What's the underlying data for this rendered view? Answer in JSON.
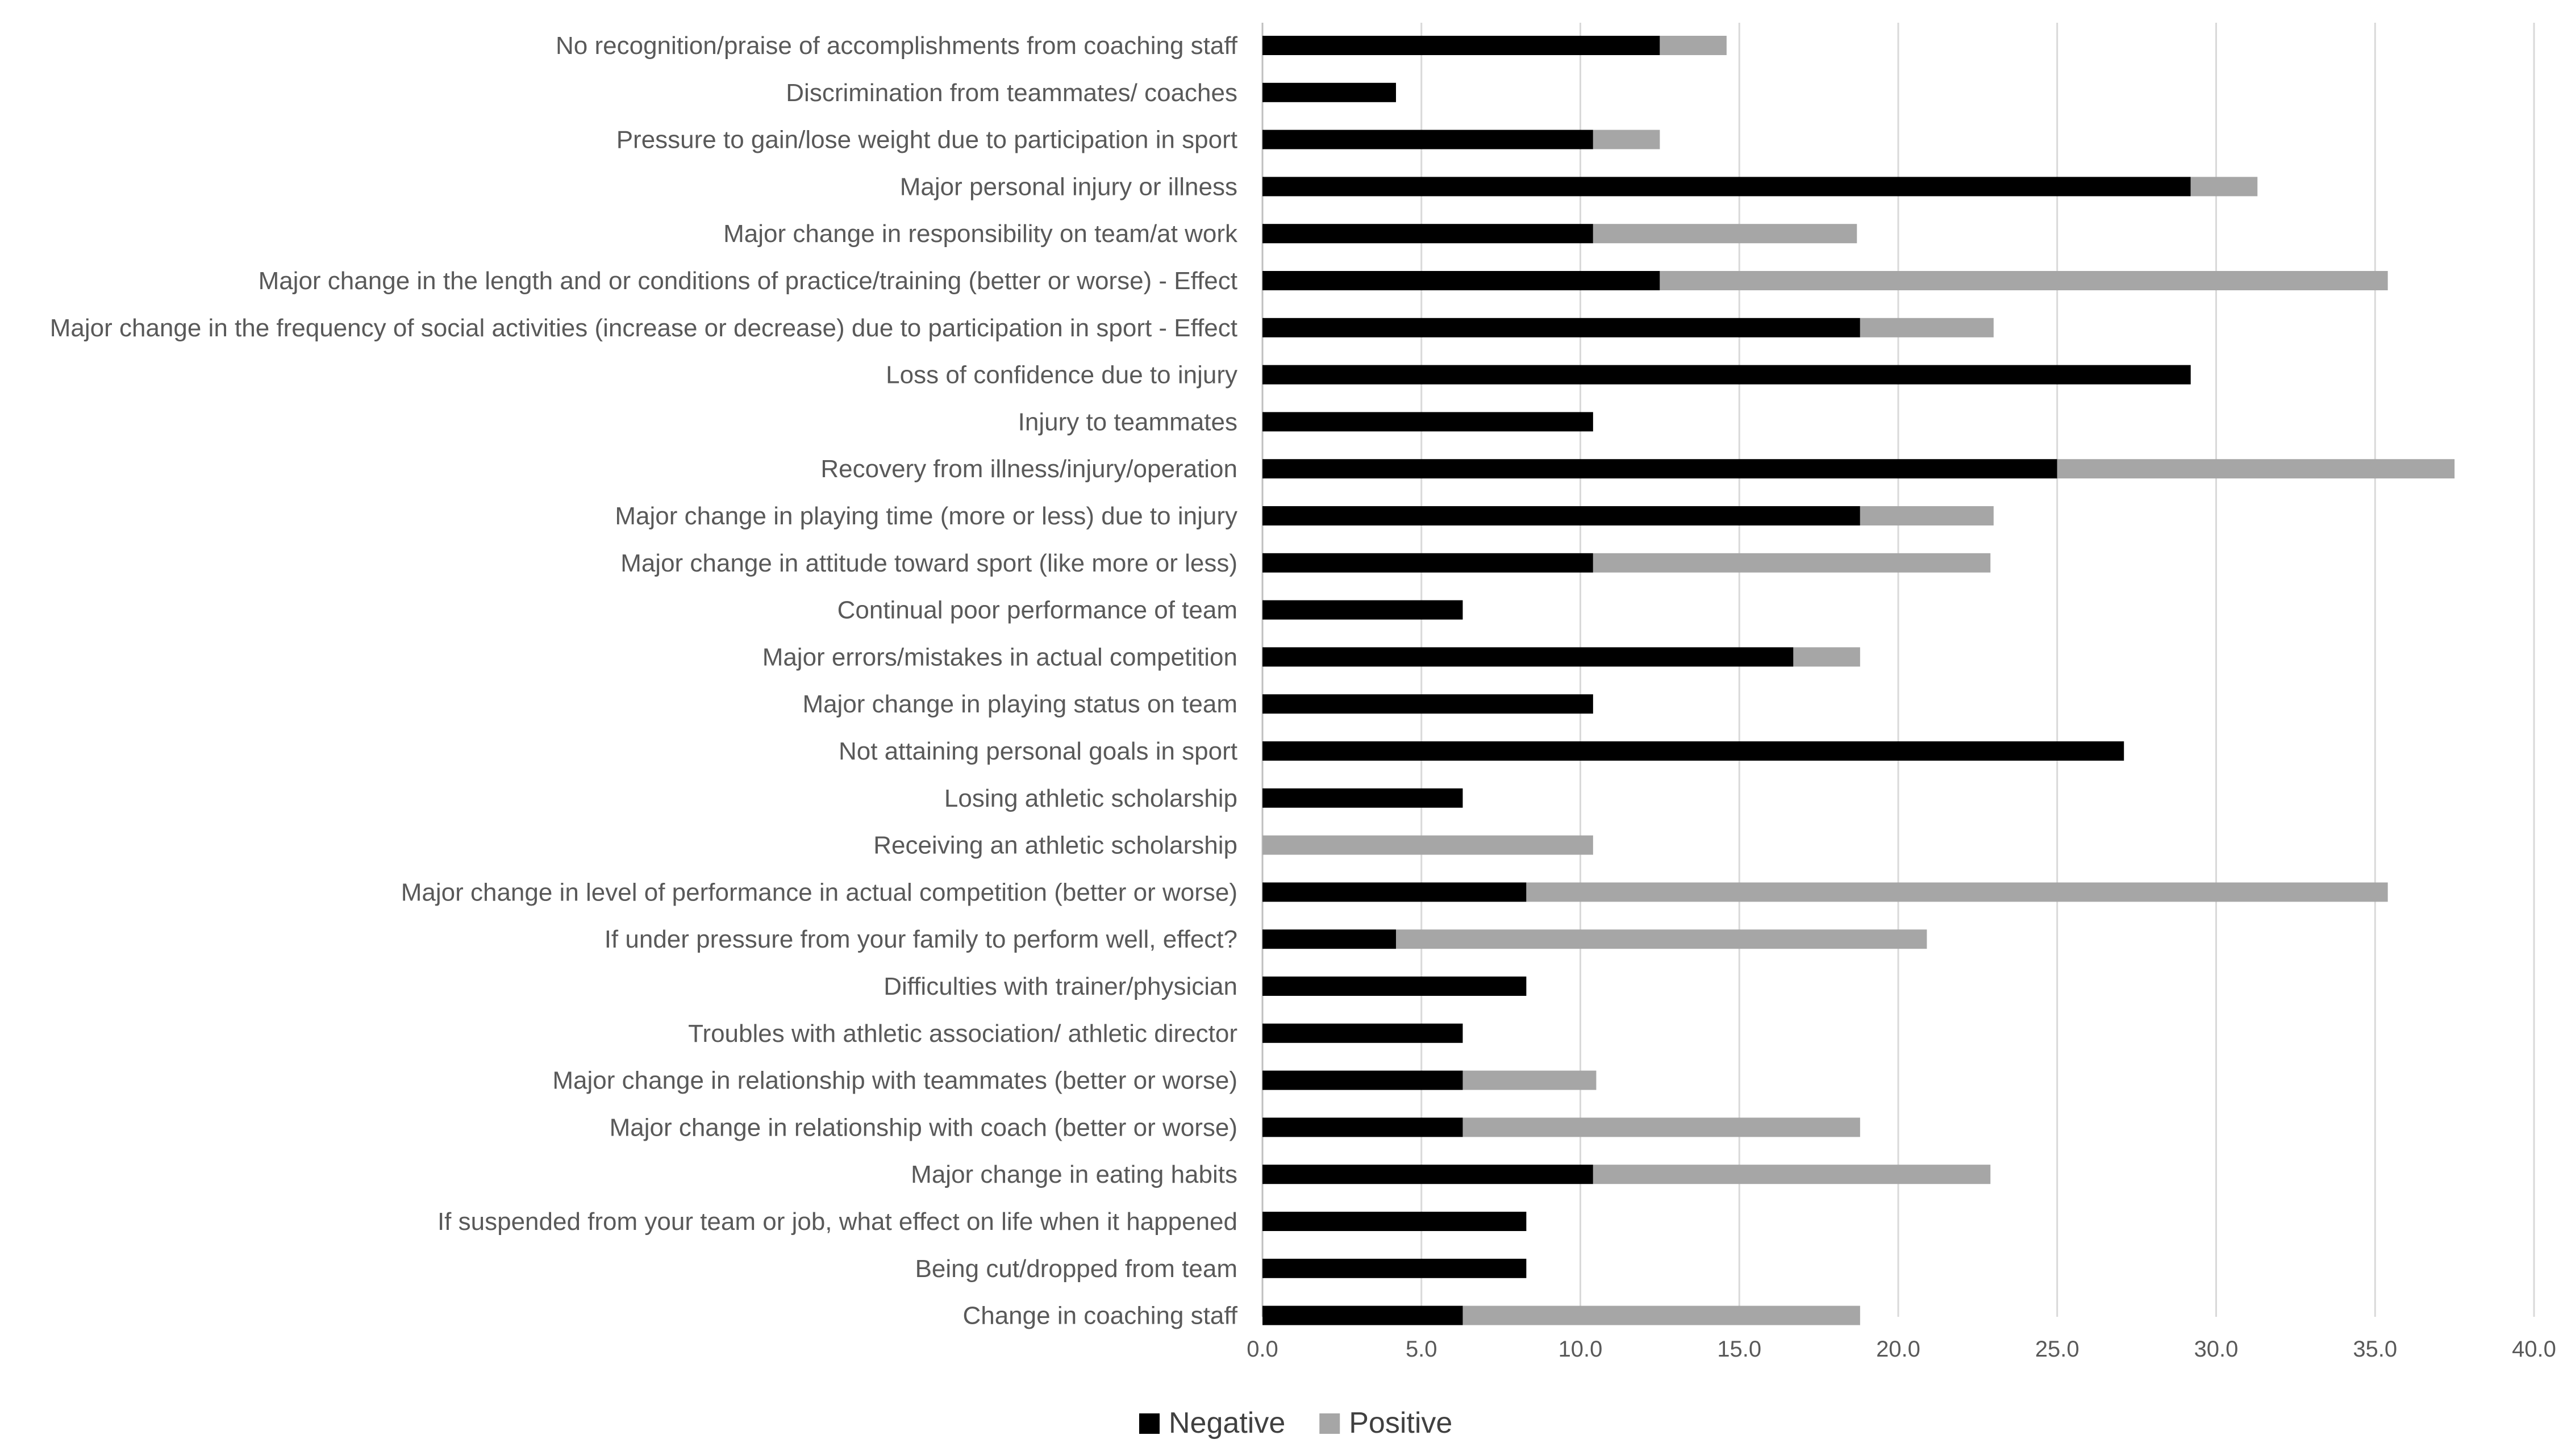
{
  "chart_data": {
    "type": "bar",
    "orientation": "horizontal",
    "stacked": true,
    "title": "",
    "xlabel": "",
    "ylabel": "",
    "xlim": [
      0,
      40
    ],
    "x_ticks": [
      "0.0",
      "5.0",
      "10.0",
      "15.0",
      "20.0",
      "25.0",
      "30.0",
      "35.0",
      "40.0"
    ],
    "grid": true,
    "legend_position": "bottom",
    "categories": [
      "No recognition/praise of accomplishments from coaching staff",
      "Discrimination from teammates/ coaches",
      "Pressure to gain/lose weight due to participation in sport",
      "Major personal injury or illness",
      "Major change in responsibility on team/at work",
      "Major change in the length and or conditions of practice/training (better or worse) - Effect",
      "Major change in the frequency of social activities (increase or decrease) due to participation in sport - Effect",
      "Loss of confidence due to injury",
      "Injury to teammates",
      "Recovery from illness/injury/operation",
      "Major change in playing time (more or less) due to injury",
      "Major change in attitude toward sport (like more or less)",
      "Continual poor performance of team",
      "Major errors/mistakes in actual competition",
      "Major change in playing status on team",
      "Not attaining personal goals in sport",
      "Losing athletic scholarship",
      "Receiving an athletic scholarship",
      "Major change in level of performance in actual competition (better or worse)",
      "If under pressure from your family to perform well, effect?",
      "Difficulties with trainer/physician",
      "Troubles with athletic association/ athletic director",
      "Major change in relationship with teammates (better or worse)",
      "Major change in relationship with coach (better or worse)",
      "Major change in eating habits",
      "If  suspended from your team or job, what effect on life when it happened",
      "Being cut/dropped from team",
      "Change in coaching staff"
    ],
    "series": [
      {
        "name": "Negative",
        "color": "#000000",
        "values": [
          12.5,
          4.2,
          10.4,
          29.2,
          10.4,
          12.5,
          18.8,
          29.2,
          10.4,
          25.0,
          18.8,
          10.4,
          6.3,
          16.7,
          10.4,
          27.1,
          6.3,
          0.0,
          8.3,
          4.2,
          8.3,
          6.3,
          6.3,
          6.3,
          10.4,
          8.3,
          8.3,
          6.3
        ]
      },
      {
        "name": "Positive",
        "color": "#a6a6a6",
        "values": [
          2.1,
          0.0,
          2.1,
          2.1,
          8.3,
          22.9,
          4.2,
          0.0,
          0.0,
          12.5,
          4.2,
          12.5,
          0.0,
          2.1,
          0.0,
          0.0,
          0.0,
          10.4,
          27.1,
          16.7,
          0.0,
          0.0,
          4.2,
          12.5,
          12.5,
          0.0,
          0.0,
          12.5
        ]
      }
    ]
  }
}
